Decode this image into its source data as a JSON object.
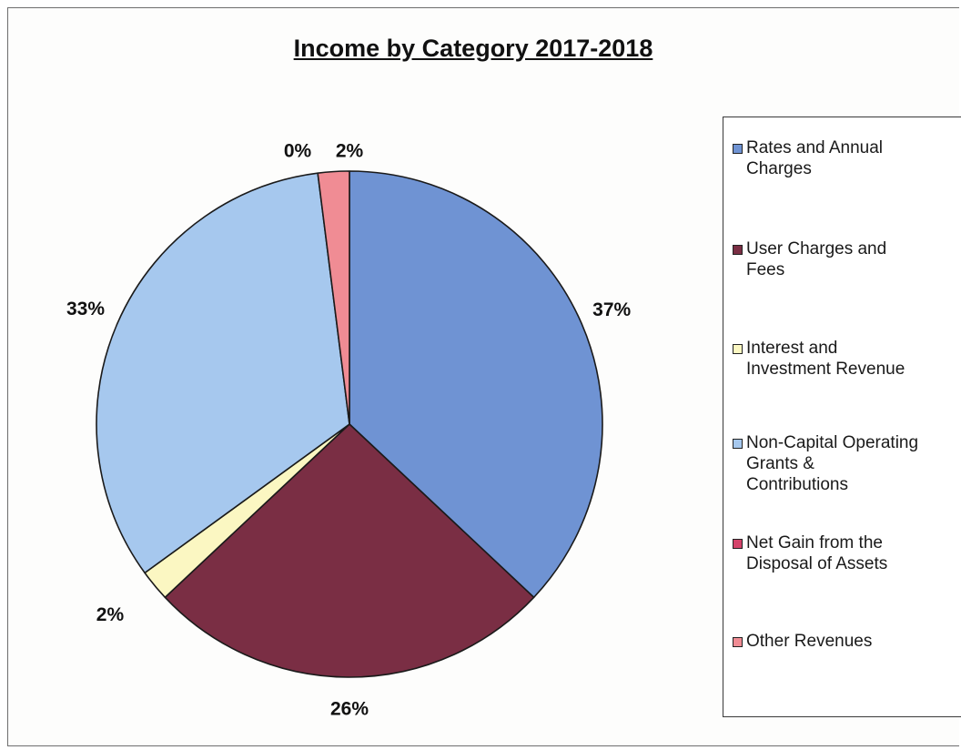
{
  "chart_data": {
    "type": "pie",
    "title": "Income by Category 2017-2018",
    "categories": [
      "Rates and Annual Charges",
      "User Charges and Fees",
      "Interest and Investment Revenue",
      "Non-Capital Operating Grants & Contributions",
      "Net Gain from the Disposal of Assets",
      "Other Revenues"
    ],
    "values": [
      37,
      26,
      2,
      33,
      0,
      2
    ],
    "data_labels": [
      "37%",
      "26%",
      "2%",
      "33%",
      "0%",
      "2%"
    ],
    "colors": [
      "#6f93d3",
      "#7a2e44",
      "#fbf7c2",
      "#a6c8ee",
      "#d4446b",
      "#f08c94"
    ],
    "legend": {
      "position": "right",
      "entries": [
        [
          "Rates and Annual",
          "Charges"
        ],
        [
          "User Charges and",
          "Fees"
        ],
        [
          "Interest and",
          "Investment Revenue"
        ],
        [
          "Non-Capital Operating",
          "Grants &",
          "Contributions"
        ],
        [
          "Net Gain from the",
          "Disposal of Assets"
        ],
        [
          "Other Revenues"
        ]
      ]
    }
  }
}
